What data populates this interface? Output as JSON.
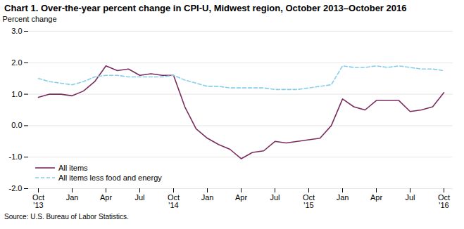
{
  "chart_data": {
    "type": "line",
    "title": "Chart 1. Over-the-year percent change in CPI-U, Midwest region, October 2013–October 2016",
    "ylabel": "Percent change",
    "annotations": [
      "Source: U.S. Bureau of Labor Statistics."
    ],
    "categories": [
      "Oct\n'13",
      null,
      null,
      "Jan",
      null,
      null,
      "Apr",
      null,
      null,
      "Jul",
      null,
      null,
      "Oct\n'14",
      null,
      null,
      "Jan",
      null,
      null,
      "Apr",
      null,
      null,
      "Jul",
      null,
      null,
      "Oct\n'15",
      null,
      null,
      "Jan",
      null,
      null,
      "Apr",
      null,
      null,
      "Jul",
      null,
      null,
      "Oct\n'16"
    ],
    "series": [
      {
        "name": "All items",
        "color": "#7B2D5E",
        "line_style": "solid",
        "values": [
          0.9,
          1.0,
          1.0,
          0.95,
          1.1,
          1.4,
          1.9,
          1.75,
          1.8,
          1.6,
          1.65,
          1.6,
          1.6,
          0.6,
          -0.1,
          -0.4,
          -0.6,
          -0.75,
          -1.05,
          -0.85,
          -0.8,
          -0.5,
          -0.55,
          -0.5,
          -0.45,
          -0.4,
          0.0,
          0.85,
          0.6,
          0.5,
          0.8,
          0.8,
          0.8,
          0.45,
          0.5,
          0.6,
          1.05
        ]
      },
      {
        "name": "All items less food and energy",
        "color": "#87CEEB",
        "line_style": "dashed",
        "values": [
          1.5,
          1.4,
          1.35,
          1.3,
          1.4,
          1.55,
          1.6,
          1.6,
          1.55,
          1.55,
          1.55,
          1.55,
          1.6,
          1.45,
          1.35,
          1.25,
          1.25,
          1.2,
          1.2,
          1.2,
          1.2,
          1.15,
          1.15,
          1.15,
          1.2,
          1.25,
          1.3,
          1.9,
          1.85,
          1.85,
          1.9,
          1.85,
          1.9,
          1.85,
          1.8,
          1.8,
          1.75
        ]
      }
    ],
    "ylim": [
      -2.0,
      3.0
    ],
    "yticks": [
      {
        "value": -2.0,
        "label": "-2.0"
      },
      {
        "value": -1.0,
        "label": "-1.0"
      },
      {
        "value": 0.0,
        "label": "0.0"
      },
      {
        "value": 1.0,
        "label": "1.0"
      },
      {
        "value": 2.0,
        "label": "2.0"
      },
      {
        "value": 3.0,
        "label": "3.0"
      }
    ],
    "grid": true,
    "legend": "lower left"
  }
}
